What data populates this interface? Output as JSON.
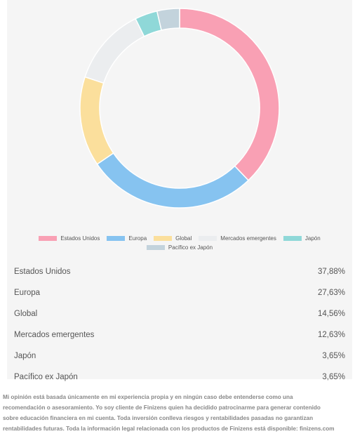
{
  "chart_data": {
    "type": "pie",
    "categories": [
      "Estados Unidos",
      "Europa",
      "Global",
      "Mercados emergentes",
      "Japón",
      "Pacífico ex Japón"
    ],
    "values": [
      37.88,
      27.63,
      14.56,
      12.63,
      3.65,
      3.65
    ],
    "colors": [
      "#f9a0b4",
      "#86c3f0",
      "#fbdf9c",
      "#ebedef",
      "#8fd8d8",
      "#c3d3dc"
    ],
    "donut": true,
    "legend_position": "bottom"
  },
  "table": {
    "rows": [
      {
        "label": "Estados Unidos",
        "value": "37,88%"
      },
      {
        "label": "Europa",
        "value": "27,63%"
      },
      {
        "label": "Global",
        "value": "14,56%"
      },
      {
        "label": "Mercados emergentes",
        "value": "12,63%"
      },
      {
        "label": "Japón",
        "value": "3,65%"
      },
      {
        "label": "Pacífico ex Japón",
        "value": "3,65%"
      }
    ]
  },
  "disclaimer": {
    "lines": [
      "Mi opinión está basada únicamente en mi experiencia propia y en ningún caso debe entenderse como una",
      "recomendación o asesoramiento. Yo soy cliente de Finizens quien ha decidido patrocinarme para generar contenido",
      "sobre educación financiera en mi cuenta. Toda inversión conlleva riesgos y rentabilidades pasadas no garantizan",
      "rentabilidades futuras. Toda la información legal relacionada con los productos de Finizens está disponible: finizens.com"
    ]
  }
}
